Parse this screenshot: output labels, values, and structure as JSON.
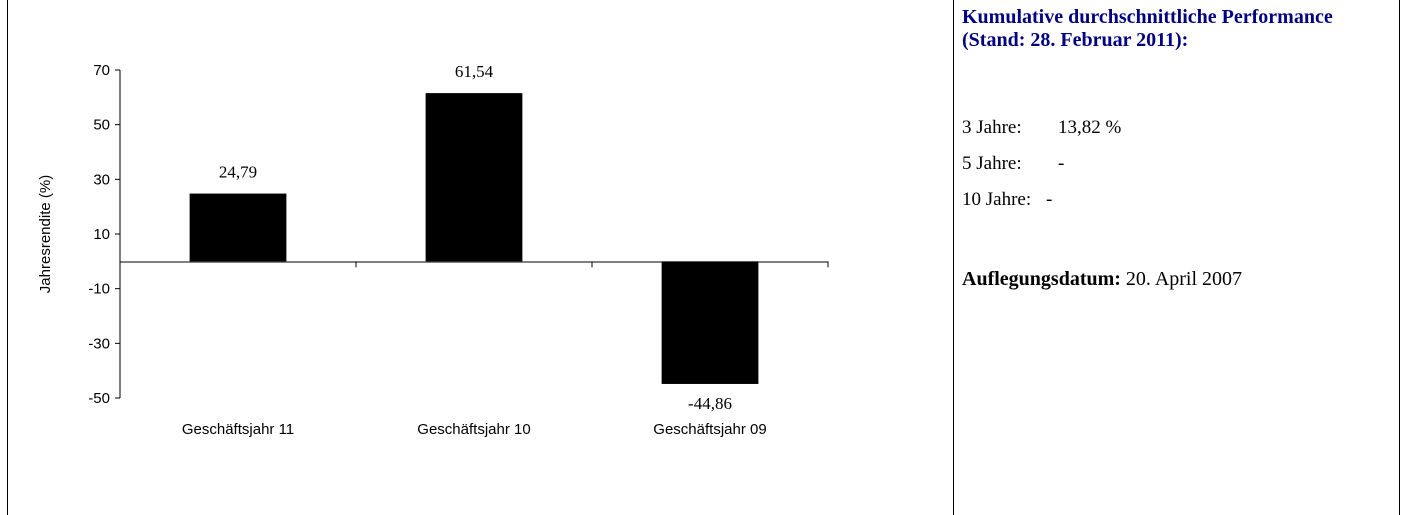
{
  "chart_data": {
    "type": "bar",
    "categories": [
      "Geschäftsjahr 11",
      "Geschäftsjahr 10",
      "Geschäftsjahr 09"
    ],
    "values": [
      24.79,
      61.54,
      -44.86
    ],
    "value_labels": [
      "24,79",
      "61,54",
      "-44,86"
    ],
    "ylabel": "Jahresrendite (%)",
    "ylim": [
      -50,
      70
    ],
    "yticks": [
      70,
      50,
      30,
      10,
      -10,
      -30,
      -50
    ],
    "bar_color": "#000000",
    "grid": false
  },
  "performance": {
    "title": "Kumulative durchschnittliche Performance (Stand: 28. Februar 2011):",
    "rows": [
      {
        "label": "3 Jahre:",
        "value": "13,82 %"
      },
      {
        "label": "5 Jahre:",
        "value": "-"
      },
      {
        "label": "10 Jahre:",
        "value": "-"
      }
    ],
    "launch_label": "Auflegungsdatum:",
    "launch_value": "20. April 2007"
  },
  "colors": {
    "title": "#000080",
    "bars": "#000000"
  }
}
